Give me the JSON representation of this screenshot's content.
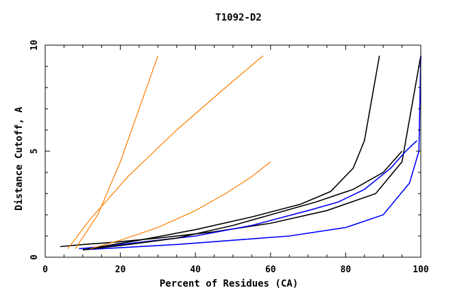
{
  "chart_data": {
    "type": "line",
    "title": "T1092-D2",
    "xlabel": "Percent of Residues (CA)",
    "ylabel": "Distance Cutoff, A",
    "xlim": [
      0,
      100
    ],
    "ylim": [
      0,
      10
    ],
    "x_ticks": [
      "0",
      "20",
      "40",
      "60",
      "80",
      "100"
    ],
    "y_ticks": [
      "0",
      "5",
      "10"
    ],
    "grid": false,
    "legend": "none",
    "colors": {
      "many_models": "#ff7f00",
      "highlight_black": "#000000",
      "highlight_blue": "#0000ff"
    },
    "series": [
      {
        "x": [
          4,
          10,
          18,
          30,
          45,
          60,
          75,
          88,
          95,
          100
        ],
        "y": [
          0.5,
          0.6,
          0.7,
          0.9,
          1.2,
          1.6,
          2.2,
          3.0,
          4.5,
          9.5
        ]
      },
      {
        "x": [
          10,
          20,
          35,
          50,
          65,
          80,
          90,
          97,
          99.5,
          100
        ],
        "y": [
          0.35,
          0.45,
          0.6,
          0.8,
          1.0,
          1.4,
          2.0,
          3.5,
          5.0,
          9.5
        ]
      },
      {
        "x": [
          9,
          15,
          25,
          40,
          55,
          70,
          78,
          85,
          92,
          96,
          99
        ],
        "y": [
          0.4,
          0.5,
          0.7,
          1.0,
          1.5,
          2.2,
          2.6,
          3.2,
          4.2,
          5.0,
          5.5
        ]
      },
      {
        "x": [
          10,
          20,
          35,
          50,
          62,
          72,
          82,
          90,
          95
        ],
        "y": [
          0.35,
          0.55,
          0.9,
          1.5,
          2.1,
          2.6,
          3.2,
          4.0,
          5.0
        ]
      },
      {
        "x": [
          10,
          25,
          40,
          55,
          68,
          76,
          82,
          85,
          86.5,
          88,
          89
        ],
        "y": [
          0.35,
          0.8,
          1.3,
          1.9,
          2.5,
          3.1,
          4.2,
          5.5,
          7.0,
          8.5,
          9.5
        ]
      },
      {
        "x": [
          12,
          20,
          30,
          40,
          48,
          55,
          60
        ],
        "y": [
          0.4,
          0.8,
          1.4,
          2.2,
          3.0,
          3.8,
          4.5
        ]
      },
      {
        "x": [
          8,
          14,
          20,
          26,
          30
        ],
        "y": [
          0.4,
          2.0,
          4.5,
          7.5,
          9.5
        ]
      },
      {
        "x": [
          6,
          12,
          22,
          35,
          48,
          58
        ],
        "y": [
          0.4,
          1.8,
          3.8,
          6.0,
          8.0,
          9.5
        ]
      }
    ]
  }
}
